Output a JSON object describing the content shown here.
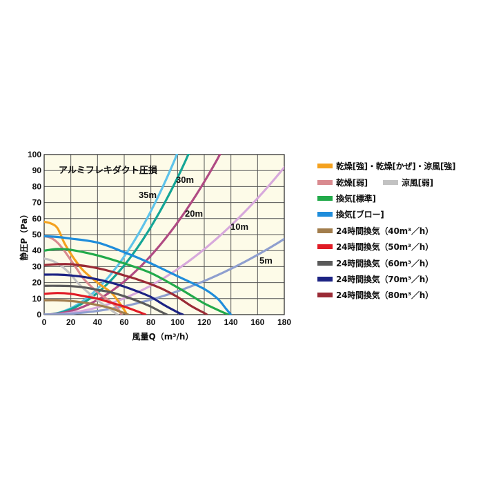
{
  "chart_data": {
    "type": "line",
    "title": "アルミフレキダクト圧損",
    "xlabel": "風量Q（m³/h）",
    "ylabel": "静圧P（Pa）",
    "xlim": [
      0,
      180
    ],
    "ylim": [
      0,
      100
    ],
    "xticks": [
      "0",
      "20",
      "40",
      "60",
      "80",
      "100",
      "120",
      "140",
      "160",
      "180"
    ],
    "yticks": [
      "0",
      "10",
      "20",
      "30",
      "40",
      "50",
      "60",
      "70",
      "80",
      "90",
      "100"
    ],
    "grid": true,
    "legend_position": "right",
    "plot_background": "#fdfbe8",
    "duct_curves": [
      {
        "label": "35m",
        "color": "#5ec3ea",
        "k": 0.0101
      },
      {
        "label": "30m",
        "color": "#14a596",
        "k": 0.00856
      },
      {
        "label": "20m",
        "color": "#b04b83",
        "k": 0.00576
      },
      {
        "label": "10m",
        "color": "#d7a9dc",
        "k": 0.00284
      },
      {
        "label": "5m",
        "color": "#8f9fcf",
        "k": 0.00146
      }
    ],
    "series": [
      {
        "name": "乾燥[強]・乾燥[かぜ]・涼風[強]",
        "color": "#f4a11e",
        "x": [
          0,
          5,
          10,
          15,
          20,
          25,
          30,
          40,
          50,
          55,
          60,
          62
        ],
        "y": [
          58,
          57,
          54,
          45,
          38,
          32,
          27,
          20,
          14,
          9,
          3,
          0
        ]
      },
      {
        "name": "乾燥[弱]",
        "color": "#d98a8f",
        "x": [
          0,
          5,
          10,
          15,
          20,
          25,
          30,
          40,
          50,
          55,
          58
        ],
        "y": [
          49,
          48,
          45,
          40,
          34,
          28,
          22,
          14,
          8,
          4,
          0
        ]
      },
      {
        "name": "涼風[弱]",
        "color": "#c2c2c2",
        "x": [
          0,
          5,
          10,
          15,
          20,
          25,
          30,
          40,
          50,
          55
        ],
        "y": [
          35,
          34,
          32,
          29,
          25,
          20,
          16,
          9,
          3,
          0
        ]
      },
      {
        "name": "換気[標準]",
        "color": "#22aa4a",
        "x": [
          0,
          10,
          20,
          40,
          60,
          80,
          100,
          110,
          120,
          130,
          138
        ],
        "y": [
          40,
          41,
          40.5,
          37,
          32,
          26,
          17,
          12,
          7,
          3,
          0
        ]
      },
      {
        "name": "換気[ブロー]",
        "color": "#1f8ddb",
        "x": [
          0,
          10,
          20,
          40,
          60,
          80,
          100,
          120,
          130,
          136,
          140
        ],
        "y": [
          49,
          48.5,
          47.5,
          45,
          39,
          32,
          24,
          16,
          10,
          4,
          0
        ]
      },
      {
        "name": "24時間換気（40m³／h）",
        "color": "#a27d4c",
        "x": [
          0,
          10,
          20,
          30,
          40,
          50,
          55,
          60,
          63
        ],
        "y": [
          9,
          9,
          8.5,
          7.5,
          6,
          4,
          2.5,
          1,
          0
        ]
      },
      {
        "name": "24時間換気（50m³／h）",
        "color": "#e01b25",
        "x": [
          0,
          10,
          20,
          30,
          40,
          50,
          60,
          70,
          76
        ],
        "y": [
          13,
          13.5,
          13,
          11.5,
          10,
          7.5,
          5,
          2,
          0
        ]
      },
      {
        "name": "24時間換気（60m³／h）",
        "color": "#5a5a5a",
        "x": [
          0,
          10,
          20,
          30,
          40,
          50,
          60,
          70,
          80,
          87,
          92
        ],
        "y": [
          18,
          18,
          17.8,
          17,
          15.5,
          14,
          11.5,
          8.5,
          5,
          2,
          0
        ]
      },
      {
        "name": "24時間換気（70m³／h）",
        "color": "#1c2383",
        "x": [
          0,
          10,
          20,
          30,
          40,
          50,
          60,
          70,
          80,
          90,
          100,
          104
        ],
        "y": [
          25,
          25,
          24.5,
          23.5,
          22,
          20,
          17.5,
          14.5,
          11,
          6,
          1.5,
          0
        ]
      },
      {
        "name": "24時間換気（80m³／h）",
        "color": "#9a2a35",
        "x": [
          0,
          10,
          20,
          30,
          40,
          50,
          60,
          70,
          80,
          90,
          100,
          110,
          120,
          122
        ],
        "y": [
          31,
          31.5,
          31.5,
          30.5,
          29,
          27,
          24.5,
          22,
          19,
          15.5,
          11,
          5.5,
          1,
          0
        ]
      }
    ]
  },
  "legend": {
    "rows": [
      [
        0
      ],
      [
        1,
        2
      ],
      [
        3
      ],
      [
        4
      ],
      [
        5
      ],
      [
        6
      ],
      [
        7
      ],
      [
        8
      ],
      [
        9
      ]
    ]
  }
}
